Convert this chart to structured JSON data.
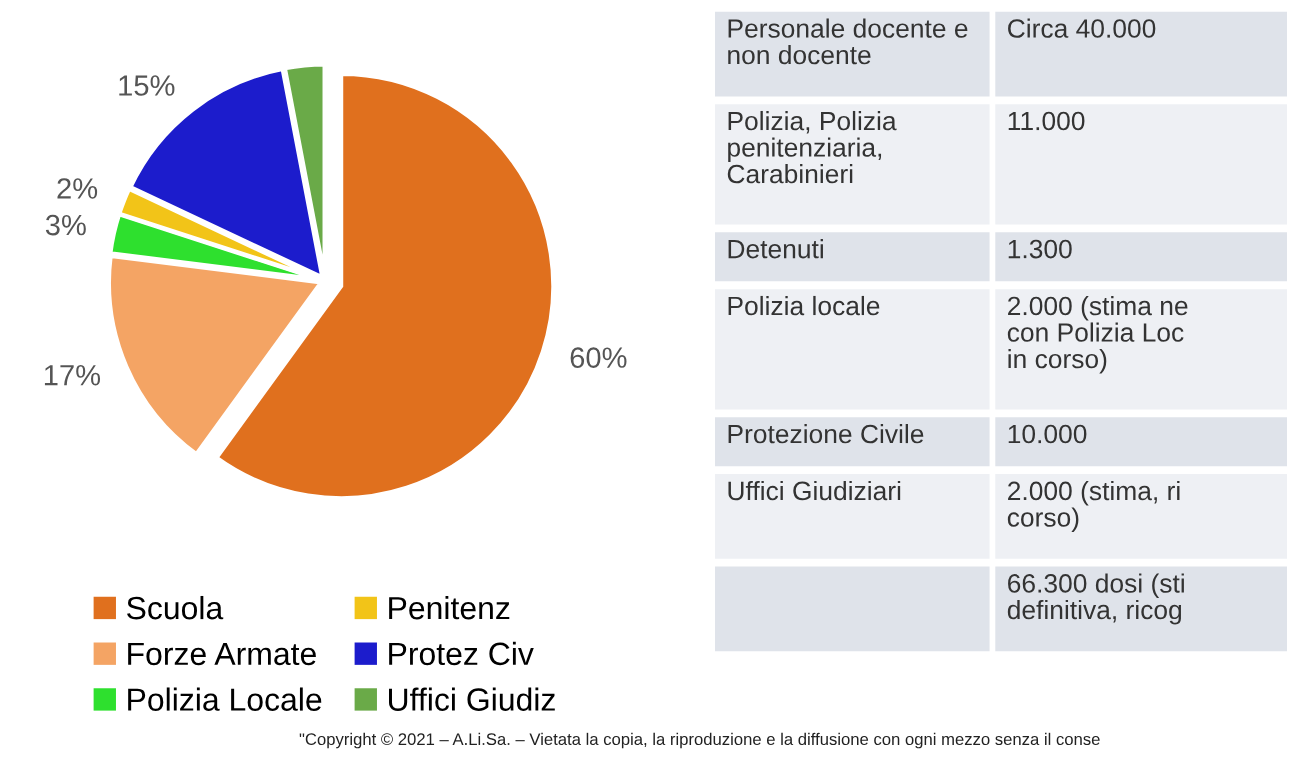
{
  "chart_data": [
    {
      "type": "pie",
      "categories": [
        "Scuola",
        "Forze Armate",
        "Polizia Locale",
        "Penitenz",
        "Protez Civ",
        "Uffici Giudiz"
      ],
      "values": [
        60,
        17,
        3,
        2,
        15,
        3
      ],
      "value_labels": [
        "60%",
        "17%",
        "3%",
        "2%",
        "15%",
        null
      ],
      "colors": [
        "#e0701e",
        "#f4a464",
        "#2ee02e",
        "#f2c418",
        "#1c1ccc",
        "#6aaa48"
      ],
      "legend": "bottom",
      "annotations": [
        "\"Copyright © 2021 – A.Li.Sa. – Vietata la copia, la riproduzione e la diffusione con ogni mezzo senza il conse"
      ]
    },
    {
      "type": "other",
      "categories": [
        "Personale docente e\nnon docente",
        "Polizia, Polizia\npenitenziaria,\nCarabinieri",
        "Detenuti",
        "Polizia locale",
        "Protezione Civile",
        "Uffici Giudiziari",
        null
      ],
      "value_labels": [
        "Circa 40.000",
        "11.000",
        "1.300",
        "2.000 (stima ne\ncon Polizia Loc\nin corso)",
        "10.000",
        "2.000 (stima, ri\ncorso)",
        "66.300 dosi (sti\ndefinitiva, ricog"
      ]
    }
  ]
}
